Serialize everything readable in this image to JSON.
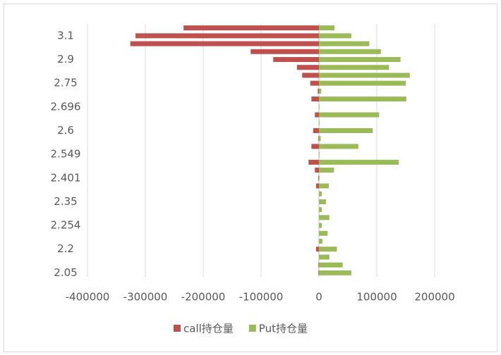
{
  "chart_data": {
    "type": "bar",
    "orientation": "horizontal",
    "categories": [
      "2.05",
      null,
      null,
      "2.2",
      null,
      null,
      "2.254",
      null,
      null,
      "2.35",
      null,
      null,
      "2.401",
      null,
      null,
      "2.549",
      null,
      null,
      "2.6",
      null,
      null,
      "2.696",
      null,
      null,
      "2.75",
      null,
      null,
      "2.9",
      null,
      null,
      "3.1",
      null
    ],
    "series": [
      {
        "name": "call持仓量",
        "color": "#c0504d",
        "values": [
          -1000,
          -1000,
          0,
          -5000,
          0,
          0,
          0,
          0,
          0,
          0,
          0,
          -5000,
          -1000,
          -7000,
          -18000,
          0,
          -13000,
          -1000,
          -10000,
          0,
          -7000,
          0,
          -13000,
          -2000,
          -15000,
          -29000,
          -38000,
          -79000,
          -118000,
          -326000,
          -317000,
          -234000
        ]
      },
      {
        "name": "Put持仓量",
        "color": "#9bbb59",
        "values": [
          56000,
          41000,
          18000,
          31000,
          6000,
          15000,
          5000,
          18000,
          5000,
          12000,
          5000,
          17000,
          1000,
          26000,
          138000,
          1000,
          68000,
          3000,
          93000,
          1000,
          104000,
          1000,
          151000,
          4000,
          150000,
          157000,
          121000,
          141000,
          107000,
          87000,
          56000,
          27000
        ]
      }
    ],
    "xlim": [
      -400000,
      200000
    ],
    "xticks": [
      -400000,
      -300000,
      -200000,
      -100000,
      0,
      100000,
      200000
    ],
    "grid": true,
    "legend": "bottom"
  }
}
